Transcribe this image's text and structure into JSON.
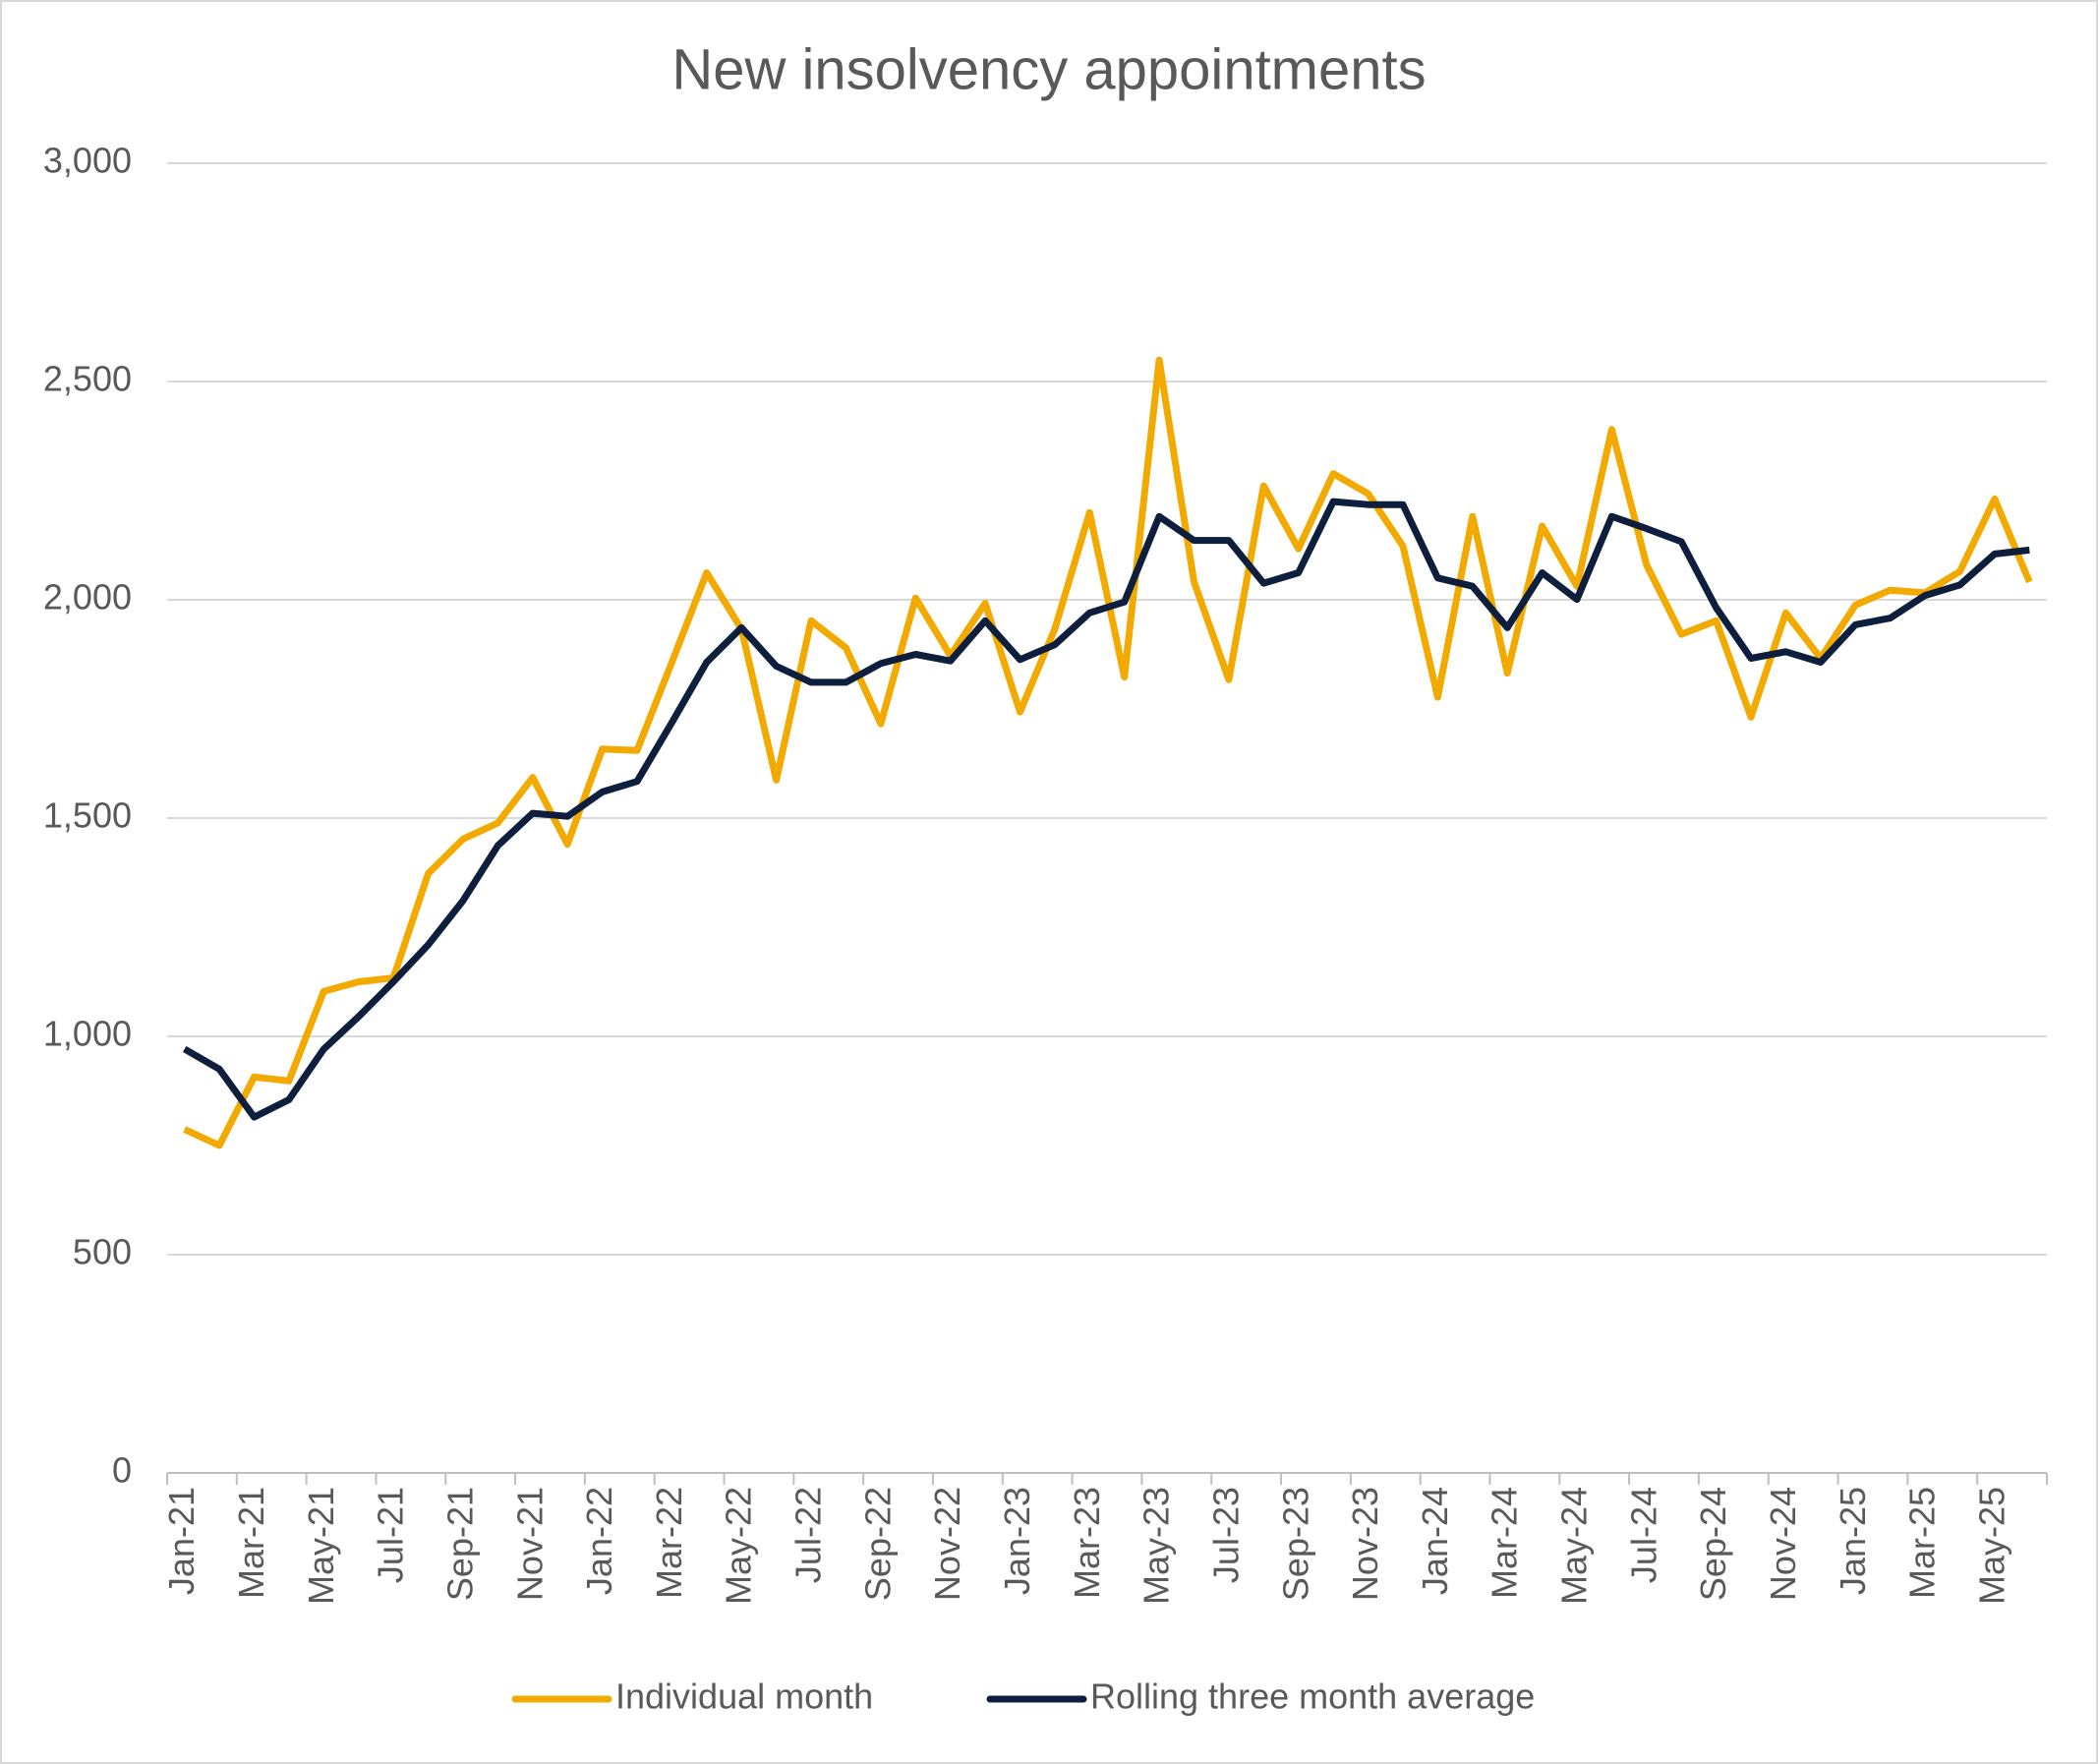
{
  "chart_data": {
    "type": "line",
    "title": "New insolvency appointments",
    "categories": [
      "Jan-21",
      null,
      "Mar-21",
      null,
      "May-21",
      null,
      "Jul-21",
      null,
      "Sep-21",
      null,
      "Nov-21",
      null,
      "Jan-22",
      null,
      "Mar-22",
      null,
      "May-22",
      null,
      "Jul-22",
      null,
      "Sep-22",
      null,
      "Nov-22",
      null,
      "Jan-23",
      null,
      "Mar-23",
      null,
      "May-23",
      null,
      "Jul-23",
      null,
      "Sep-23",
      null,
      "Nov-23",
      null,
      "Jan-24",
      null,
      "Mar-24",
      null,
      "May-24",
      null,
      "Jul-24",
      null,
      "Sep-24",
      null,
      "Nov-24",
      null,
      "Jan-25",
      null,
      "Mar-25",
      null,
      "May-25",
      null
    ],
    "series": [
      {
        "name": "Individual month",
        "color": "#f2a900",
        "values": [
          787,
          750,
          907,
          898,
          1103,
          1125,
          1134,
          1373,
          1452,
          1489,
          1593,
          1440,
          1658,
          1655,
          1857,
          2062,
          1933,
          1587,
          1952,
          1890,
          1716,
          2004,
          1872,
          1992,
          1743,
          1933,
          2200,
          1823,
          2549,
          2041,
          1817,
          2261,
          2117,
          2289,
          2243,
          2123,
          1777,
          2191,
          1832,
          2169,
          2031,
          2390,
          2080,
          1921,
          1952,
          1731,
          1970,
          1866,
          1988,
          2022,
          2016,
          2065,
          2231,
          2041
        ]
      },
      {
        "name": "Rolling three month average",
        "color": "#0d1f3c",
        "values": [
          971,
          925,
          815,
          855,
          971,
          1045,
          1125,
          1210,
          1311,
          1437,
          1511,
          1504,
          1560,
          1584,
          1719,
          1857,
          1936,
          1848,
          1811,
          1811,
          1854,
          1875,
          1860,
          1952,
          1863,
          1897,
          1970,
          1995,
          2191,
          2136,
          2136,
          2038,
          2062,
          2225,
          2218,
          2218,
          2050,
          2031,
          1936,
          2062,
          2001,
          2191,
          2163,
          2133,
          1982,
          1866,
          1881,
          1857,
          1943,
          1958,
          2010,
          2034,
          2105,
          2114
        ]
      }
    ],
    "ylim": [
      0,
      3000
    ],
    "yticks": [
      0,
      500,
      {
        "value": 1000,
        "label": "1,000"
      },
      {
        "value": 1500,
        "label": "1,500"
      },
      {
        "value": 2000,
        "label": "2,000"
      },
      {
        "value": 2500,
        "label": "2,500"
      },
      {
        "value": 3000,
        "label": "3,000"
      }
    ],
    "grid": true,
    "legend": "bottom"
  }
}
